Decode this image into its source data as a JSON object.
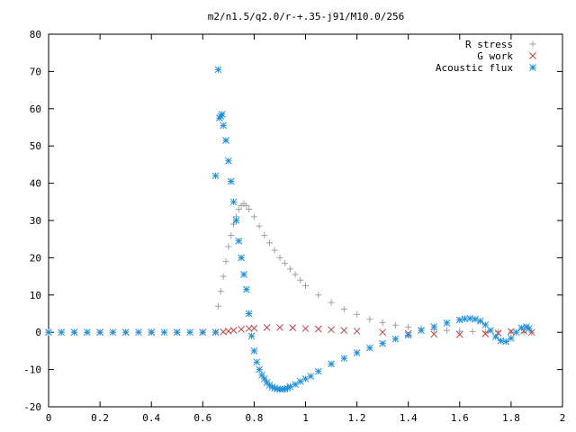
{
  "chart_data": {
    "type": "scatter",
    "title": "m2/n1.5/q2.0/r-+.35-j91/M10.0/256",
    "xlabel": "",
    "ylabel": "",
    "xlim": [
      0,
      2
    ],
    "ylim": [
      -20,
      80
    ],
    "x_ticks": [
      "0",
      "0.2",
      "0.4",
      "0.6",
      "0.8",
      "1",
      "1.2",
      "1.4",
      "1.6",
      "1.8",
      "2"
    ],
    "y_ticks": [
      "-20",
      "-10",
      "0",
      "10",
      "20",
      "30",
      "40",
      "50",
      "60",
      "70",
      "80"
    ],
    "grid": false,
    "legend_position": "top-right",
    "series": [
      {
        "name": "R stress",
        "marker": "plus",
        "color": "#a0a0a0",
        "x": [
          0.0,
          0.05,
          0.1,
          0.15,
          0.2,
          0.25,
          0.3,
          0.35,
          0.4,
          0.45,
          0.5,
          0.55,
          0.6,
          0.65,
          0.66,
          0.67,
          0.68,
          0.69,
          0.7,
          0.71,
          0.72,
          0.73,
          0.74,
          0.75,
          0.76,
          0.77,
          0.78,
          0.8,
          0.82,
          0.84,
          0.86,
          0.88,
          0.9,
          0.92,
          0.94,
          0.96,
          0.98,
          1.0,
          1.05,
          1.1,
          1.15,
          1.2,
          1.25,
          1.3,
          1.35,
          1.4,
          1.45,
          1.5,
          1.55,
          1.6,
          1.65,
          1.7,
          1.75,
          1.8,
          1.85,
          1.88
        ],
        "y": [
          0,
          0,
          0,
          0,
          0,
          0,
          0,
          0,
          0,
          0,
          0,
          0,
          0,
          0,
          7,
          11,
          15,
          19,
          23,
          26,
          29,
          31,
          33,
          34,
          34.5,
          34,
          33,
          31,
          28.5,
          26,
          24,
          22,
          20,
          18.5,
          17,
          15.5,
          14,
          12.5,
          10,
          8,
          6.2,
          4.8,
          3.5,
          2.6,
          1.9,
          1.4,
          1.0,
          0.7,
          0.5,
          0.3,
          0.2,
          0.1,
          0.1,
          0.05,
          0,
          0
        ]
      },
      {
        "name": "G work",
        "marker": "cross",
        "color": "#c04040",
        "x": [
          0.0,
          0.1,
          0.2,
          0.3,
          0.4,
          0.5,
          0.6,
          0.65,
          0.68,
          0.7,
          0.72,
          0.75,
          0.78,
          0.8,
          0.85,
          0.9,
          0.95,
          1.0,
          1.05,
          1.1,
          1.15,
          1.2,
          1.3,
          1.4,
          1.5,
          1.6,
          1.7,
          1.75,
          1.8,
          1.85,
          1.88
        ],
        "y": [
          0,
          0,
          0,
          0,
          0,
          0,
          0,
          0,
          0.1,
          0.3,
          0.5,
          0.8,
          1.0,
          1.1,
          1.3,
          1.3,
          1.2,
          1.0,
          0.9,
          0.7,
          0.5,
          0.3,
          0,
          -0.3,
          -0.5,
          -0.6,
          -0.4,
          -0.2,
          0.2,
          0.3,
          0
        ]
      },
      {
        "name": "Acoustic flux",
        "marker": "star",
        "color": "#1e8fd8",
        "x": [
          0.0,
          0.05,
          0.1,
          0.15,
          0.2,
          0.25,
          0.3,
          0.35,
          0.4,
          0.45,
          0.5,
          0.55,
          0.6,
          0.65,
          0.65,
          0.66,
          0.665,
          0.67,
          0.675,
          0.68,
          0.69,
          0.7,
          0.71,
          0.72,
          0.73,
          0.74,
          0.75,
          0.76,
          0.77,
          0.78,
          0.79,
          0.8,
          0.81,
          0.82,
          0.83,
          0.84,
          0.85,
          0.86,
          0.87,
          0.88,
          0.89,
          0.9,
          0.91,
          0.92,
          0.93,
          0.94,
          0.96,
          0.98,
          1.0,
          1.02,
          1.05,
          1.1,
          1.15,
          1.2,
          1.25,
          1.3,
          1.35,
          1.4,
          1.45,
          1.5,
          1.55,
          1.6,
          1.62,
          1.64,
          1.66,
          1.68,
          1.7,
          1.72,
          1.74,
          1.76,
          1.78,
          1.8,
          1.82,
          1.84,
          1.86,
          1.87
        ],
        "y": [
          0,
          0,
          0,
          0,
          0,
          0,
          0,
          0,
          0,
          0,
          0,
          0,
          0,
          0,
          42,
          70.5,
          57.5,
          58,
          58.5,
          55.5,
          51.5,
          46,
          40.5,
          35,
          30,
          24.5,
          20,
          15.5,
          11.5,
          5,
          -1,
          -5,
          -8,
          -10,
          -11.5,
          -12.5,
          -13.5,
          -14.2,
          -14.7,
          -15,
          -15.2,
          -15.3,
          -15.3,
          -15.2,
          -15,
          -14.6,
          -14,
          -13.2,
          -12.5,
          -11.8,
          -10.5,
          -8.5,
          -7,
          -5.5,
          -4.2,
          -3,
          -1.8,
          -0.8,
          0.5,
          1.5,
          2.5,
          3.3,
          3.6,
          3.7,
          3.5,
          3.0,
          2.0,
          0.5,
          -1.2,
          -2.3,
          -2.5,
          -1.6,
          0,
          1.2,
          1.5,
          1.0
        ]
      }
    ]
  }
}
